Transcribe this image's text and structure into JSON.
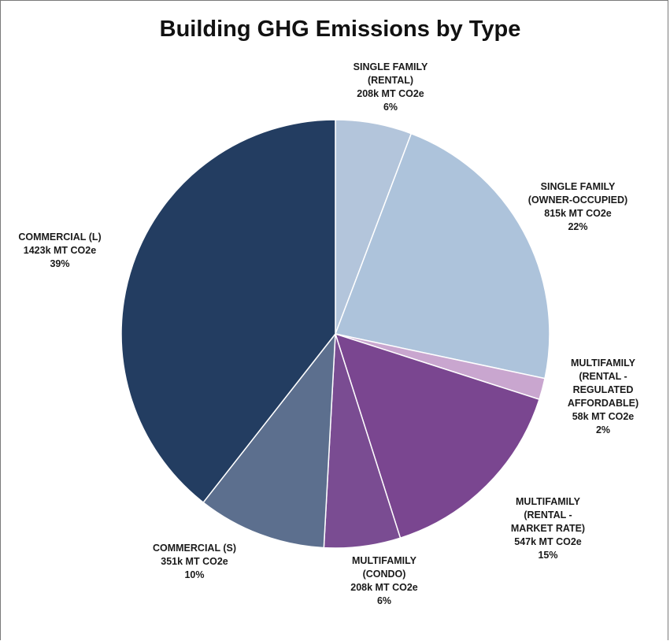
{
  "chart_data": {
    "type": "pie",
    "title": "Building GHG Emissions by Type",
    "unit": "MT CO2e",
    "slices": [
      {
        "name": "SINGLE FAMILY (RENTAL)",
        "label_lines": [
          "SINGLE FAMILY",
          "(RENTAL)",
          "208k MT CO2e",
          "6%"
        ],
        "value": 208,
        "percent": 6,
        "color": "#b3c5db"
      },
      {
        "name": "SINGLE FAMILY (OWNER-OCCUPIED)",
        "label_lines": [
          "SINGLE FAMILY",
          "(OWNER-OCCUPIED)",
          "815k MT CO2e",
          "22%"
        ],
        "value": 815,
        "percent": 22,
        "color": "#adc3db"
      },
      {
        "name": "MULTIFAMILY (RENTAL - REGULATED AFFORDABLE)",
        "label_lines": [
          "MULTIFAMILY",
          "(RENTAL -",
          "REGULATED",
          "AFFORDABLE)",
          "58k MT CO2e",
          "2%"
        ],
        "value": 58,
        "percent": 2,
        "color": "#c9a6cf"
      },
      {
        "name": "MULTIFAMILY (RENTAL - MARKET RATE)",
        "label_lines": [
          "MULTIFAMILY",
          "(RENTAL -",
          "MARKET RATE)",
          "547k MT CO2e",
          "15%"
        ],
        "value": 547,
        "percent": 15,
        "color": "#7a4690"
      },
      {
        "name": "MULTIFAMILY (CONDO)",
        "label_lines": [
          "MULTIFAMILY",
          "(CONDO)",
          "208k MT CO2e",
          "6%"
        ],
        "value": 208,
        "percent": 6,
        "color": "#7a4c92"
      },
      {
        "name": "COMMERCIAL (S)",
        "label_lines": [
          "COMMERCIAL (S)",
          "351k MT CO2e",
          "10%"
        ],
        "value": 351,
        "percent": 10,
        "color": "#5c6f8e"
      },
      {
        "name": "COMMERCIAL (L)",
        "label_lines": [
          "COMMERCIAL (L)",
          "1423k MT CO2e",
          "39%"
        ],
        "value": 1423,
        "percent": 39,
        "color": "#233d61"
      }
    ]
  }
}
